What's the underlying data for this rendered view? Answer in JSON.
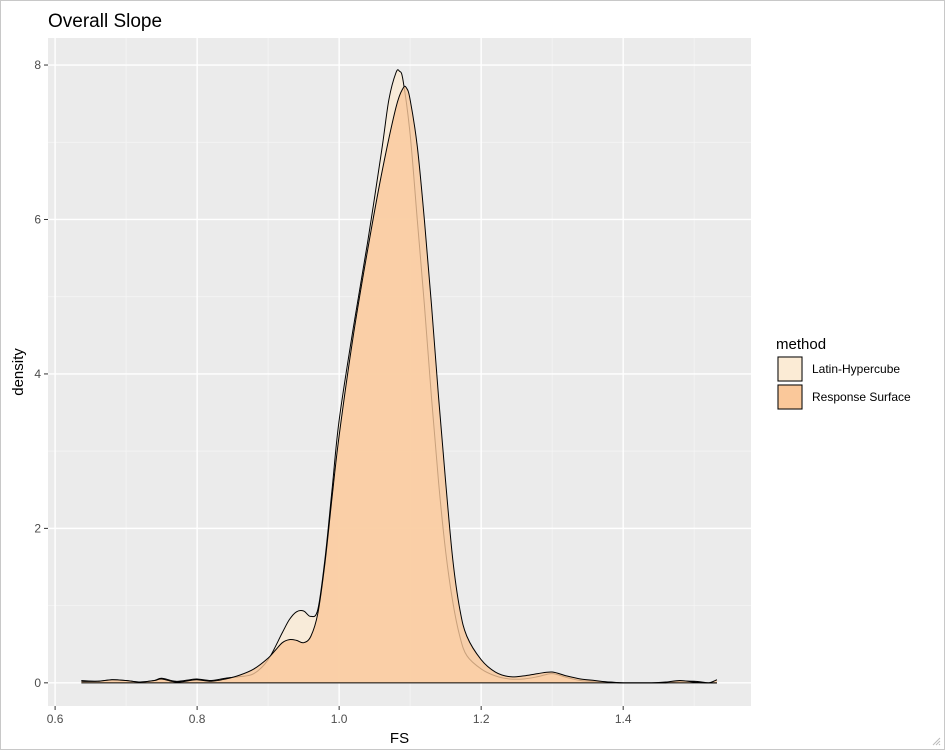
{
  "chart_data": {
    "type": "area",
    "title": "Overall Slope",
    "xlabel": "FS",
    "ylabel": "density",
    "xlim": [
      0.59,
      1.58
    ],
    "ylim": [
      -0.3,
      8.35
    ],
    "x_ticks": [
      0.6,
      0.8,
      1.0,
      1.2,
      1.4
    ],
    "x_tick_labels": [
      "0.6",
      "0.8",
      "1.0",
      "1.2",
      "1.4"
    ],
    "y_ticks": [
      0,
      2,
      4,
      6,
      8
    ],
    "y_tick_labels": [
      "0",
      "2",
      "4",
      "6",
      "8"
    ],
    "grid": true,
    "legend": {
      "title": "method",
      "position": "right",
      "entries": [
        "Latin-Hypercube",
        "Response Surface"
      ]
    },
    "series": [
      {
        "name": "Latin-Hypercube",
        "fill": "#FBEBD5",
        "x": [
          0.637,
          0.66,
          0.68,
          0.7,
          0.72,
          0.74,
          0.75,
          0.77,
          0.79,
          0.8,
          0.82,
          0.84,
          0.86,
          0.88,
          0.9,
          0.92,
          0.93,
          0.94,
          0.95,
          0.96,
          0.97,
          0.98,
          0.99,
          1.0,
          1.02,
          1.04,
          1.06,
          1.07,
          1.08,
          1.085,
          1.09,
          1.1,
          1.11,
          1.12,
          1.13,
          1.14,
          1.15,
          1.16,
          1.17,
          1.18,
          1.2,
          1.22,
          1.24,
          1.26,
          1.28,
          1.3,
          1.32,
          1.34,
          1.36,
          1.38,
          1.4,
          1.42,
          1.44,
          1.46,
          1.48,
          1.5,
          1.52,
          1.532
        ],
        "y": [
          0.03,
          0.02,
          0.04,
          0.03,
          0.01,
          0.03,
          0.06,
          0.02,
          0.04,
          0.05,
          0.03,
          0.06,
          0.08,
          0.12,
          0.3,
          0.65,
          0.82,
          0.92,
          0.93,
          0.86,
          0.95,
          1.6,
          2.5,
          3.4,
          4.6,
          5.7,
          6.9,
          7.55,
          7.9,
          7.92,
          7.8,
          7.1,
          6.0,
          4.9,
          3.7,
          2.6,
          1.7,
          1.05,
          0.6,
          0.35,
          0.18,
          0.09,
          0.05,
          0.05,
          0.08,
          0.12,
          0.07,
          0.03,
          0.02,
          0.01,
          0.0,
          0.0,
          0.0,
          0.0,
          0.02,
          0.02,
          0.0,
          0.0
        ]
      },
      {
        "name": "Response Surface",
        "fill": "#FAC89A",
        "x": [
          0.637,
          0.66,
          0.68,
          0.7,
          0.72,
          0.74,
          0.75,
          0.77,
          0.79,
          0.8,
          0.82,
          0.84,
          0.86,
          0.88,
          0.9,
          0.91,
          0.92,
          0.93,
          0.94,
          0.95,
          0.96,
          0.97,
          0.98,
          0.99,
          1.0,
          1.02,
          1.04,
          1.06,
          1.08,
          1.09,
          1.095,
          1.1,
          1.11,
          1.12,
          1.13,
          1.14,
          1.15,
          1.16,
          1.17,
          1.18,
          1.2,
          1.22,
          1.24,
          1.26,
          1.28,
          1.3,
          1.32,
          1.34,
          1.36,
          1.38,
          1.4,
          1.42,
          1.44,
          1.46,
          1.48,
          1.5,
          1.52,
          1.532
        ],
        "y": [
          0.02,
          0.02,
          0.04,
          0.03,
          0.01,
          0.03,
          0.05,
          0.01,
          0.03,
          0.04,
          0.02,
          0.05,
          0.1,
          0.18,
          0.32,
          0.42,
          0.52,
          0.56,
          0.55,
          0.52,
          0.6,
          0.9,
          1.55,
          2.4,
          3.2,
          4.5,
          5.6,
          6.6,
          7.45,
          7.7,
          7.7,
          7.55,
          6.95,
          6.0,
          4.9,
          3.7,
          2.6,
          1.6,
          0.95,
          0.6,
          0.3,
          0.14,
          0.08,
          0.09,
          0.12,
          0.14,
          0.09,
          0.05,
          0.03,
          0.01,
          0.0,
          0.0,
          0.0,
          0.01,
          0.03,
          0.01,
          0.0,
          0.04
        ]
      }
    ]
  }
}
